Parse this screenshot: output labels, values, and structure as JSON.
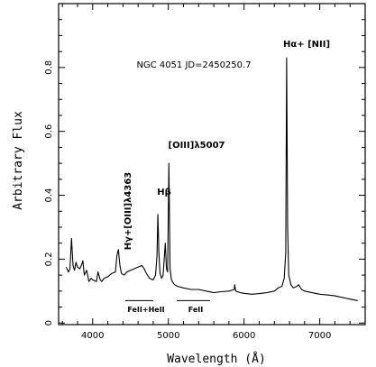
{
  "chart_data": {
    "type": "line",
    "title": "",
    "xlabel": "Wavelength (Å)",
    "ylabel": "Arbitrary Flux",
    "xlim": [
      3550,
      7600
    ],
    "ylim": [
      -0.005,
      1.0
    ],
    "x_ticks": [
      4000,
      5000,
      6000,
      7000
    ],
    "x_tick_labels": [
      "4000",
      "5000",
      "6000",
      "7000"
    ],
    "y_ticks": [
      0,
      0.2,
      0.4,
      0.6,
      0.8
    ],
    "y_tick_labels": [
      "0",
      "0.2",
      "0.4",
      "0.6",
      "0.8"
    ],
    "grid": false,
    "legend": "none",
    "series": [
      {
        "x": [
          3650,
          3680,
          3700,
          3720,
          3740,
          3760,
          3780,
          3800,
          3830,
          3850,
          3870,
          3890,
          3920,
          3950,
          3980,
          4000,
          4050,
          4070,
          4100,
          4120,
          4150,
          4200,
          4250,
          4300,
          4320,
          4340,
          4360,
          4380,
          4420,
          4450,
          4500,
          4550,
          4600,
          4650,
          4680,
          4700,
          4750,
          4800,
          4830,
          4850,
          4862,
          4875,
          4890,
          4910,
          4930,
          4959,
          4975,
          4990,
          5007,
          5022,
          5040,
          5080,
          5120,
          5200,
          5300,
          5400,
          5500,
          5600,
          5700,
          5800,
          5870,
          5876,
          5890,
          5950,
          6000,
          6100,
          6200,
          6300,
          6400,
          6450,
          6500,
          6530,
          6550,
          6563,
          6575,
          6590,
          6620,
          6650,
          6700,
          6720,
          6760,
          6800,
          6900,
          7000,
          7100,
          7200,
          7300,
          7400,
          7500
        ],
        "y": [
          0.175,
          0.16,
          0.17,
          0.265,
          0.18,
          0.165,
          0.19,
          0.175,
          0.17,
          0.18,
          0.195,
          0.15,
          0.165,
          0.13,
          0.14,
          0.135,
          0.13,
          0.16,
          0.135,
          0.13,
          0.14,
          0.145,
          0.155,
          0.16,
          0.21,
          0.23,
          0.18,
          0.155,
          0.15,
          0.16,
          0.165,
          0.17,
          0.175,
          0.18,
          0.17,
          0.16,
          0.14,
          0.135,
          0.15,
          0.21,
          0.34,
          0.22,
          0.155,
          0.14,
          0.15,
          0.25,
          0.17,
          0.16,
          0.5,
          0.17,
          0.135,
          0.12,
          0.115,
          0.11,
          0.105,
          0.105,
          0.1,
          0.095,
          0.098,
          0.1,
          0.105,
          0.12,
          0.1,
          0.095,
          0.093,
          0.09,
          0.092,
          0.095,
          0.1,
          0.11,
          0.115,
          0.14,
          0.22,
          0.83,
          0.3,
          0.15,
          0.12,
          0.11,
          0.115,
          0.12,
          0.105,
          0.1,
          0.095,
          0.09,
          0.088,
          0.085,
          0.08,
          0.075,
          0.07
        ]
      }
    ],
    "annotations": {
      "object": "NGC 4051 JD=2450250.7",
      "halpha": "Hα+ [NII]",
      "oiii": "[OIII]λ5007",
      "hbeta": "Hβ",
      "hgamma": "Hγ+[OIII]λ4363",
      "feii_heii": "FeII+HeII",
      "feii": "FeII"
    },
    "feii_bars": [
      {
        "from": 4430,
        "to": 4800
      },
      {
        "from": 5110,
        "to": 5550
      }
    ]
  }
}
